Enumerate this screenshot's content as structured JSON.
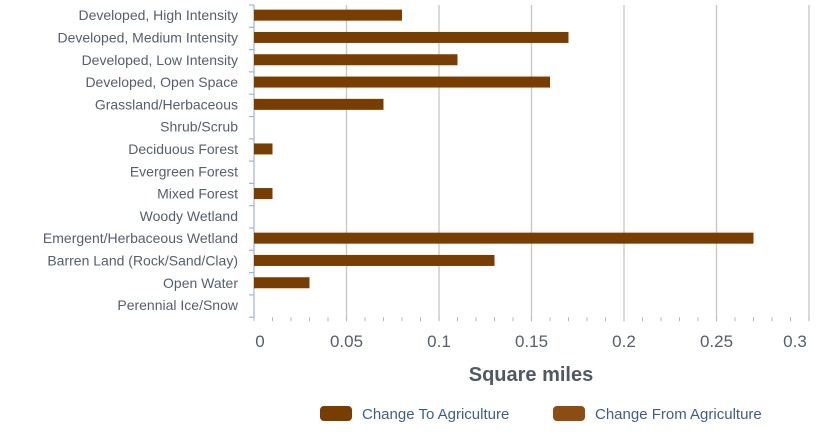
{
  "chart_data": {
    "type": "bar",
    "orientation": "horizontal",
    "categories": [
      "Developed, High Intensity",
      "Developed, Medium Intensity",
      "Developed, Low Intensity",
      "Developed, Open Space",
      "Grassland/Herbaceous",
      "Shrub/Scrub",
      "Deciduous Forest",
      "Evergreen Forest",
      "Mixed Forest",
      "Woody Wetland",
      "Emergent/Herbaceous Wetland",
      "Barren Land (Rock/Sand/Clay)",
      "Open Water",
      "Perennial Ice/Snow"
    ],
    "series": [
      {
        "name": "Change To Agriculture",
        "color": "#7a3d00",
        "values": [
          0.08,
          0.17,
          0.11,
          0.16,
          0.07,
          0,
          0.01,
          0,
          0.01,
          0,
          0.27,
          0.13,
          0.03,
          0
        ]
      },
      {
        "name": "Change From Agriculture",
        "color": "#8b4d14",
        "values": [
          0,
          0,
          0,
          0,
          0,
          0,
          0,
          0,
          0,
          0,
          0,
          0,
          0,
          0
        ]
      }
    ],
    "xlabel": "Square miles",
    "xlim": [
      0,
      0.3
    ],
    "xticks": [
      0,
      0.05,
      0.1,
      0.15,
      0.2,
      0.25,
      0.3
    ],
    "xtick_labels": [
      "0",
      "0.05",
      "0.1",
      "0.15",
      "0.2",
      "0.25",
      "0.3"
    ],
    "grid": "vertical",
    "legend_position": "bottom-right"
  }
}
